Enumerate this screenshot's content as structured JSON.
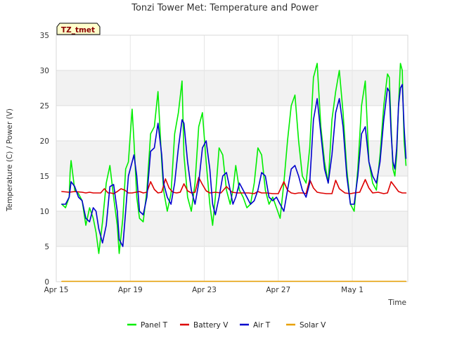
{
  "chart_data": {
    "type": "line",
    "title": "Tonzi Tower Met: Temperature and Power",
    "xlabel": "Time",
    "ylabel": "Temperature (C) / Power (V)",
    "tag_label": "TZ_tmet",
    "xlim": [
      0,
      19
    ],
    "ylim": [
      0,
      35
    ],
    "x_unit": "days since Apr 15",
    "x_ticks": [
      {
        "value": 0,
        "label": "Apr 15"
      },
      {
        "value": 4,
        "label": "Apr 19"
      },
      {
        "value": 8,
        "label": "Apr 23"
      },
      {
        "value": 12,
        "label": "Apr 27"
      },
      {
        "value": 16,
        "label": "May 1"
      }
    ],
    "y_ticks": [
      0,
      5,
      10,
      15,
      20,
      25,
      30,
      35
    ],
    "grid": true,
    "legend_position": "bottom",
    "series": [
      {
        "name": "Panel T",
        "color": "#00ee00",
        "x": [
          0.3,
          0.5,
          0.7,
          0.75,
          0.8,
          1.0,
          1.2,
          1.4,
          1.6,
          1.8,
          2.0,
          2.15,
          2.3,
          2.5,
          2.7,
          2.9,
          3.1,
          3.3,
          3.4,
          3.6,
          3.75,
          3.9,
          4.1,
          4.2,
          4.35,
          4.5,
          4.7,
          4.9,
          5.1,
          5.3,
          5.5,
          5.7,
          5.8,
          6.0,
          6.2,
          6.4,
          6.6,
          6.8,
          6.9,
          7.1,
          7.3,
          7.5,
          7.7,
          7.9,
          8.1,
          8.3,
          8.45,
          8.6,
          8.8,
          9.0,
          9.2,
          9.4,
          9.55,
          9.7,
          9.9,
          10.1,
          10.3,
          10.5,
          10.7,
          10.9,
          11.1,
          11.3,
          11.5,
          11.7,
          11.9,
          12.1,
          12.3,
          12.5,
          12.7,
          12.9,
          13.1,
          13.3,
          13.5,
          13.7,
          13.9,
          14.1,
          14.3,
          14.5,
          14.7,
          14.9,
          15.1,
          15.3,
          15.5,
          15.7,
          15.9,
          16.1,
          16.3,
          16.5,
          16.7,
          16.9,
          17.1,
          17.3,
          17.5,
          17.7,
          17.9,
          18.0,
          18.1,
          18.2,
          18.3,
          18.4,
          18.5,
          18.6,
          18.7,
          18.8,
          18.9
        ],
        "values": [
          11,
          10.5,
          12,
          15.5,
          17.2,
          13,
          12.5,
          11.5,
          8,
          10.5,
          9,
          7,
          4,
          8.5,
          14,
          16.5,
          12,
          8,
          4,
          9,
          16,
          17,
          24.5,
          20,
          12,
          9,
          8.5,
          13,
          21,
          22,
          27,
          17,
          13,
          10,
          12.5,
          21,
          24,
          28.5,
          18,
          12,
          10,
          14,
          22,
          24,
          17,
          11,
          8,
          12,
          19,
          18,
          13,
          11,
          13,
          16.5,
          13,
          12,
          10.5,
          11,
          14,
          19,
          18,
          13,
          11,
          12,
          10.5,
          9,
          14,
          20,
          25,
          26.5,
          20,
          15,
          14,
          19,
          29,
          31,
          22,
          17,
          14,
          23,
          27,
          30,
          24,
          16,
          11,
          10,
          16,
          25,
          28.5,
          17,
          14,
          13,
          18,
          25,
          29.5,
          29,
          22,
          16,
          15,
          18,
          25,
          31,
          30,
          20,
          16.5
        ]
      },
      {
        "name": "Battery V",
        "color": "#dd0000",
        "x": [
          0.3,
          0.7,
          1.0,
          1.4,
          1.6,
          1.8,
          2.0,
          2.4,
          2.6,
          2.8,
          2.95,
          3.1,
          3.3,
          3.5,
          3.7,
          3.9,
          4.1,
          4.3,
          4.5,
          4.7,
          4.9,
          5.1,
          5.3,
          5.5,
          5.7,
          5.9,
          6.1,
          6.3,
          6.5,
          6.7,
          6.9,
          7.1,
          7.3,
          7.5,
          7.7,
          7.9,
          8.1,
          8.3,
          8.6,
          8.9,
          9.2,
          9.5,
          9.8,
          10.1,
          10.4,
          10.7,
          10.9,
          11.1,
          11.4,
          11.7,
          12.0,
          12.3,
          12.5,
          12.7,
          12.9,
          13.1,
          13.3,
          13.5,
          13.7,
          13.9,
          14.1,
          14.3,
          14.6,
          14.9,
          15.1,
          15.3,
          15.6,
          15.9,
          16.1,
          16.4,
          16.7,
          16.9,
          17.1,
          17.4,
          17.7,
          17.9,
          18.1,
          18.3,
          18.5,
          18.7,
          18.9
        ],
        "values": [
          12.8,
          12.7,
          12.8,
          12.7,
          12.6,
          12.7,
          12.6,
          12.6,
          13.2,
          12.6,
          12.6,
          12.5,
          12.8,
          13.2,
          13,
          12.6,
          12.6,
          12.7,
          12.8,
          12.6,
          12.7,
          14.2,
          13.1,
          12.6,
          12.7,
          14.6,
          13.3,
          12.7,
          12.6,
          12.7,
          13.9,
          12.9,
          12.6,
          12.7,
          14.8,
          13.8,
          12.9,
          12.6,
          12.7,
          12.6,
          13.5,
          12.7,
          12.6,
          12.6,
          12.6,
          12.5,
          12.8,
          12.6,
          12.6,
          12.5,
          12.5,
          14.2,
          13.0,
          12.6,
          12.5,
          12.6,
          12.6,
          12.5,
          14.5,
          13.3,
          12.7,
          12.6,
          12.5,
          12.5,
          14.4,
          13.2,
          12.6,
          12.5,
          12.6,
          12.7,
          14.5,
          13.3,
          12.6,
          12.7,
          12.5,
          12.6,
          14.2,
          13.5,
          12.8,
          12.6,
          12.6
        ]
      },
      {
        "name": "Air T",
        "color": "#0000cc",
        "x": [
          0.3,
          0.5,
          0.7,
          0.8,
          1.0,
          1.2,
          1.4,
          1.6,
          1.8,
          2.0,
          2.15,
          2.3,
          2.5,
          2.7,
          2.9,
          3.1,
          3.3,
          3.4,
          3.6,
          3.75,
          3.9,
          4.1,
          4.2,
          4.35,
          4.5,
          4.7,
          4.9,
          5.1,
          5.3,
          5.5,
          5.7,
          5.8,
          6.0,
          6.2,
          6.4,
          6.6,
          6.8,
          6.9,
          7.1,
          7.3,
          7.5,
          7.7,
          7.9,
          8.1,
          8.3,
          8.45,
          8.6,
          8.8,
          9.0,
          9.2,
          9.4,
          9.55,
          9.7,
          9.9,
          10.1,
          10.3,
          10.5,
          10.7,
          10.9,
          11.1,
          11.3,
          11.5,
          11.7,
          11.9,
          12.1,
          12.3,
          12.5,
          12.7,
          12.9,
          13.1,
          13.3,
          13.5,
          13.7,
          13.9,
          14.1,
          14.3,
          14.5,
          14.7,
          14.9,
          15.1,
          15.3,
          15.5,
          15.7,
          15.9,
          16.1,
          16.3,
          16.5,
          16.7,
          16.9,
          17.1,
          17.3,
          17.5,
          17.7,
          17.9,
          18.0,
          18.1,
          18.2,
          18.3,
          18.4,
          18.5,
          18.6,
          18.7,
          18.8,
          18.9
        ],
        "values": [
          11,
          11,
          12,
          14.2,
          13.5,
          12,
          11.5,
          9,
          8.5,
          10.5,
          10,
          7.5,
          5.5,
          8,
          13.5,
          13.8,
          10,
          6,
          5,
          10,
          15,
          17,
          18,
          15,
          10,
          9.5,
          12,
          18.5,
          19,
          22.5,
          18,
          14,
          12,
          11,
          14,
          19,
          23,
          22.5,
          17,
          13,
          11,
          14,
          19,
          20,
          16,
          11,
          9.5,
          12,
          15,
          15.5,
          13,
          11,
          12,
          14,
          13,
          12,
          11,
          11.5,
          13,
          15.5,
          15,
          12,
          11.5,
          12,
          11,
          10,
          13,
          16,
          16.5,
          15,
          13,
          12,
          14,
          23,
          26,
          21,
          16,
          14,
          18,
          24,
          26,
          22,
          15,
          11,
          11,
          15,
          21,
          22,
          17,
          15,
          14,
          17,
          23,
          27.5,
          27,
          21,
          17,
          16,
          19,
          25,
          27.5,
          28,
          22,
          17.5
        ]
      },
      {
        "name": "Solar V",
        "color": "#e8a000",
        "x": [
          0.3,
          18.9
        ],
        "values": [
          0.05,
          0.05
        ]
      }
    ]
  }
}
